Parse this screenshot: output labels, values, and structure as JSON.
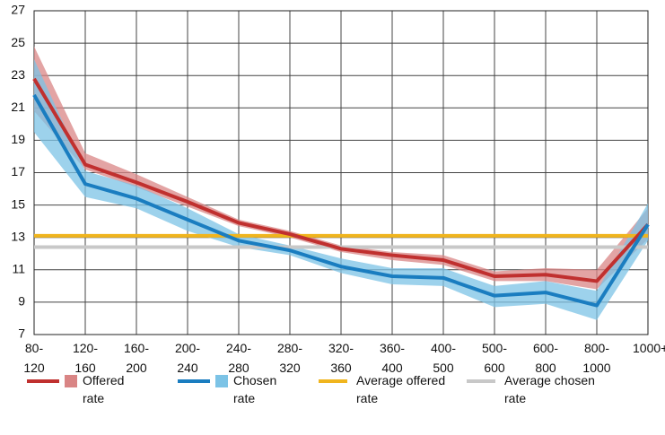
{
  "chart_data": {
    "type": "line",
    "categories": [
      "80-120",
      "120-160",
      "160-200",
      "200-240",
      "240-280",
      "280-320",
      "320-360",
      "360-400",
      "400-500",
      "500-600",
      "600-800",
      "800-1000",
      "1000+"
    ],
    "series": [
      {
        "name": "Offered rate",
        "color": "#c0302f",
        "band_color": "#d98585",
        "values": [
          22.8,
          17.5,
          16.4,
          15.2,
          13.9,
          13.2,
          12.3,
          11.9,
          11.6,
          10.6,
          10.7,
          10.3,
          13.8
        ],
        "lower": [
          20.8,
          17.2,
          16.1,
          14.9,
          13.7,
          13.0,
          12.1,
          11.6,
          11.3,
          10.3,
          10.3,
          9.8,
          12.9
        ],
        "upper": [
          24.8,
          18.2,
          16.9,
          15.5,
          14.1,
          13.4,
          12.5,
          12.1,
          11.9,
          10.9,
          11.1,
          11.0,
          14.8
        ]
      },
      {
        "name": "Chosen rate",
        "color": "#1a7dc0",
        "band_color": "#7cc3e6",
        "values": [
          21.8,
          16.3,
          15.4,
          14.1,
          12.8,
          12.2,
          11.2,
          10.6,
          10.5,
          9.4,
          9.6,
          8.8,
          13.8
        ],
        "lower": [
          19.5,
          15.5,
          14.8,
          13.4,
          12.4,
          11.9,
          10.8,
          10.1,
          10.0,
          8.7,
          8.9,
          7.9,
          12.8
        ],
        "upper": [
          24.0,
          17.1,
          16.2,
          14.8,
          13.2,
          12.5,
          11.7,
          11.1,
          11.1,
          10.0,
          10.3,
          9.7,
          15.1
        ]
      }
    ],
    "averages": [
      {
        "name": "Average offered rate",
        "color": "#f0b51e",
        "value": 13.1
      },
      {
        "name": "Average chosen rate",
        "color": "#c8c8c8",
        "value": 12.4
      }
    ],
    "ylim": [
      7,
      27
    ],
    "yticks": [
      7,
      9,
      11,
      13,
      15,
      17,
      19,
      21,
      23,
      25,
      27
    ],
    "grid": true
  }
}
